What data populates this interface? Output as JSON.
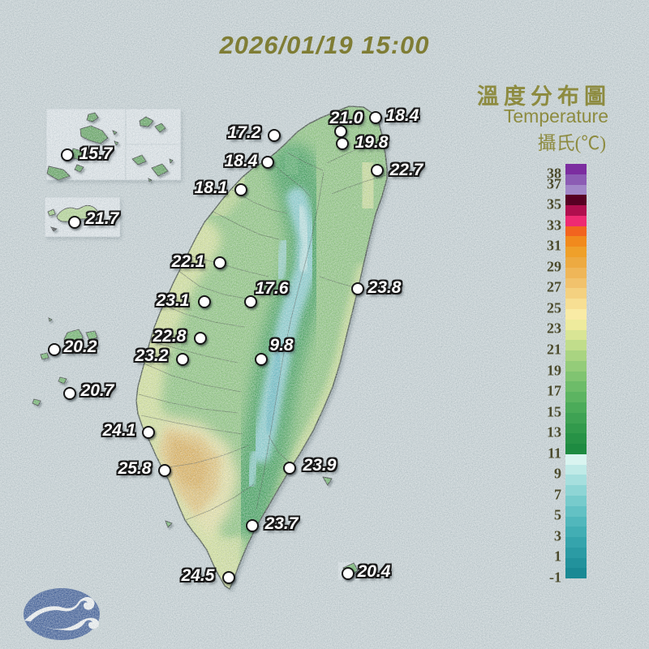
{
  "header": {
    "datetime": "2026/01/19 15:00"
  },
  "legend": {
    "title_zh": "溫度分布圖",
    "title_en": "Temperature",
    "unit": "攝氏(℃)",
    "ticks": [
      "38",
      "37",
      "35",
      "33",
      "31",
      "29",
      "27",
      "25",
      "23",
      "21",
      "19",
      "17",
      "15",
      "13",
      "11",
      "9",
      "7",
      "5",
      "3",
      "1",
      "-1"
    ],
    "scale_top_value": 39,
    "scale_bottom_value": -1,
    "band_colors_top_to_bottom": [
      "#7c2da0",
      "#8c5cb4",
      "#a287c8",
      "#570023",
      "#b00e4e",
      "#ee2a72",
      "#f2641f",
      "#f18a1d",
      "#efa02a",
      "#edaa41",
      "#efb658",
      "#f1c26c",
      "#f4d180",
      "#f7df93",
      "#f9eba5",
      "#eeeb9d",
      "#d9e595",
      "#c1dd8b",
      "#a9d481",
      "#94cc79",
      "#80c471",
      "#6dbc69",
      "#5cb461",
      "#4bab59",
      "#3ea253",
      "#329a4c",
      "#279246",
      "#1e8b41",
      "#d9f4f0",
      "#c0eae7",
      "#a6dfde",
      "#8ed5d5",
      "#77cbcc",
      "#63c1c4",
      "#51b7bc",
      "#42aeb4",
      "#35a4ac",
      "#2b9ba4",
      "#22929c",
      "#1a8994"
    ]
  },
  "map": {
    "stations": [
      {
        "value": "15.7",
        "dot": [
          83,
          191
        ],
        "label": [
          118,
          190
        ]
      },
      {
        "value": "21.7",
        "dot": [
          92,
          274
        ],
        "label": [
          126,
          270
        ]
      },
      {
        "value": "17.2",
        "dot": [
          338,
          167
        ],
        "label": [
          301,
          164
        ]
      },
      {
        "value": "21.0",
        "dot": [
          420,
          162
        ],
        "label": [
          427,
          146
        ]
      },
      {
        "value": "18.4",
        "dot": [
          463,
          145
        ],
        "label": [
          496,
          143
        ]
      },
      {
        "value": "19.8",
        "dot": [
          422,
          177
        ],
        "label": [
          458,
          176
        ]
      },
      {
        "value": "18.4",
        "dot": [
          330,
          200
        ],
        "label": [
          297,
          199
        ]
      },
      {
        "value": "22.7",
        "dot": [
          465,
          210
        ],
        "label": [
          501,
          210
        ]
      },
      {
        "value": "18.1",
        "dot": [
          297,
          234
        ],
        "label": [
          260,
          232
        ]
      },
      {
        "value": "22.1",
        "dot": [
          271,
          324
        ],
        "label": [
          232,
          323
        ]
      },
      {
        "value": "23.8",
        "dot": [
          441,
          356
        ],
        "label": [
          474,
          355
        ]
      },
      {
        "value": "23.1",
        "dot": [
          252,
          372
        ],
        "label": [
          213,
          371
        ]
      },
      {
        "value": "17.6",
        "dot": [
          309,
          372
        ],
        "label": [
          335,
          356
        ]
      },
      {
        "value": "22.8",
        "dot": [
          247,
          417
        ],
        "label": [
          209,
          415
        ]
      },
      {
        "value": "23.2",
        "dot": [
          225,
          443
        ],
        "label": [
          187,
          439
        ]
      },
      {
        "value": "9.8",
        "dot": [
          322,
          443
        ],
        "label": [
          347,
          426
        ]
      },
      {
        "value": "20.2",
        "dot": [
          67,
          431
        ],
        "label": [
          99,
          428
        ]
      },
      {
        "value": "20.7",
        "dot": [
          86,
          485
        ],
        "label": [
          120,
          482
        ]
      },
      {
        "value": "24.1",
        "dot": [
          183,
          533
        ],
        "label": [
          147,
          531
        ]
      },
      {
        "value": "25.8",
        "dot": [
          203,
          580
        ],
        "label": [
          166,
          578
        ]
      },
      {
        "value": "23.9",
        "dot": [
          357,
          577
        ],
        "label": [
          394,
          574
        ]
      },
      {
        "value": "23.7",
        "dot": [
          311,
          648
        ],
        "label": [
          347,
          646
        ]
      },
      {
        "value": "24.5",
        "dot": [
          282,
          712
        ],
        "label": [
          244,
          710
        ]
      },
      {
        "value": "20.4",
        "dot": [
          429,
          707
        ],
        "label": [
          461,
          705
        ]
      }
    ]
  }
}
